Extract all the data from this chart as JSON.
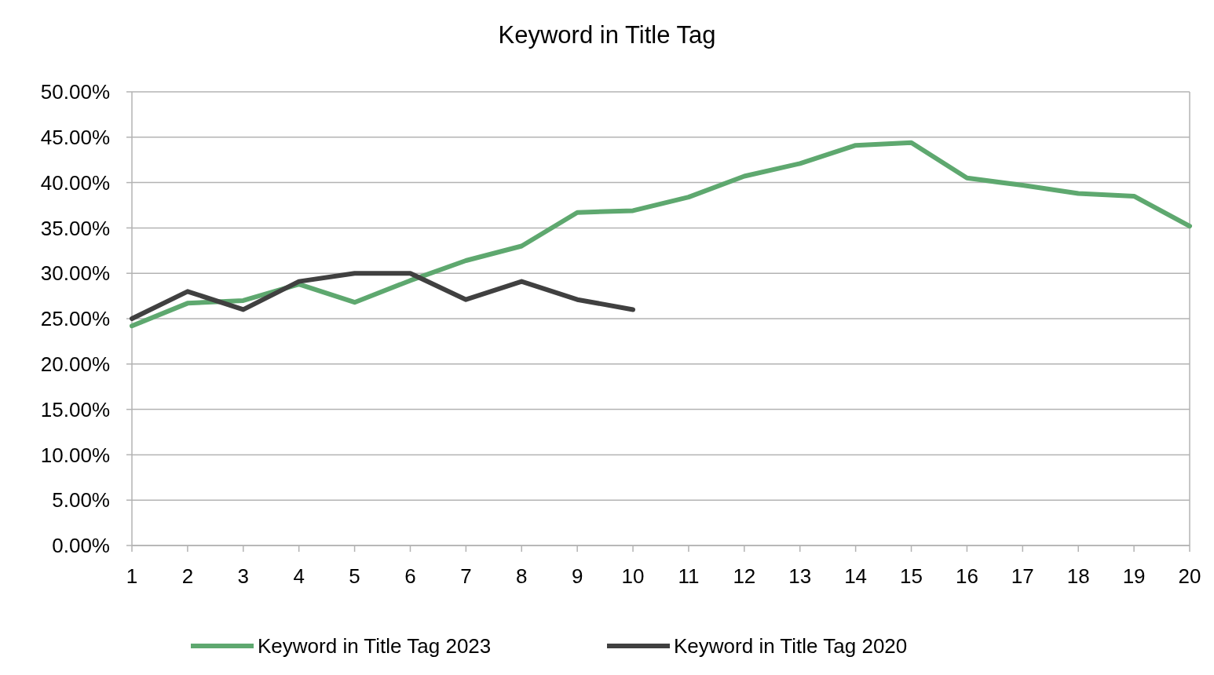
{
  "chart_data": {
    "type": "line",
    "title": "Keyword in Title Tag",
    "x": [
      1,
      2,
      3,
      4,
      5,
      6,
      7,
      8,
      9,
      10,
      11,
      12,
      13,
      14,
      15,
      16,
      17,
      18,
      19,
      20
    ],
    "series": [
      {
        "name": "Keyword in Title Tag 2023",
        "color": "#5ea86f",
        "values": [
          24.2,
          26.7,
          27.0,
          28.8,
          26.8,
          29.2,
          31.4,
          33.0,
          36.7,
          36.9,
          38.4,
          40.7,
          42.1,
          44.1,
          44.4,
          40.5,
          39.7,
          38.8,
          38.5,
          35.2
        ]
      },
      {
        "name": "Keyword in Title Tag 2020",
        "color": "#404040",
        "values": [
          25.0,
          28.0,
          26.0,
          29.1,
          30.0,
          30.0,
          27.1,
          29.1,
          27.1,
          26.0,
          null,
          null,
          null,
          null,
          null,
          null,
          null,
          null,
          null,
          null
        ]
      }
    ],
    "xlim": [
      1,
      20
    ],
    "xticks": [
      1,
      2,
      3,
      4,
      5,
      6,
      7,
      8,
      9,
      10,
      11,
      12,
      13,
      14,
      15,
      16,
      17,
      18,
      19,
      20
    ],
    "ylim": [
      0,
      50
    ],
    "yticks": [
      {
        "value": 0,
        "label": "0.00%"
      },
      {
        "value": 5,
        "label": "5.00%"
      },
      {
        "value": 10,
        "label": "10.00%"
      },
      {
        "value": 15,
        "label": "15.00%"
      },
      {
        "value": 20,
        "label": "20.00%"
      },
      {
        "value": 25,
        "label": "25.00%"
      },
      {
        "value": 30,
        "label": "30.00%"
      },
      {
        "value": 35,
        "label": "35.00%"
      },
      {
        "value": 40,
        "label": "40.00%"
      },
      {
        "value": 45,
        "label": "45.00%"
      },
      {
        "value": 50,
        "label": "50.00%"
      }
    ],
    "grid": "y",
    "legend": "bottom",
    "line_style": "solid"
  }
}
